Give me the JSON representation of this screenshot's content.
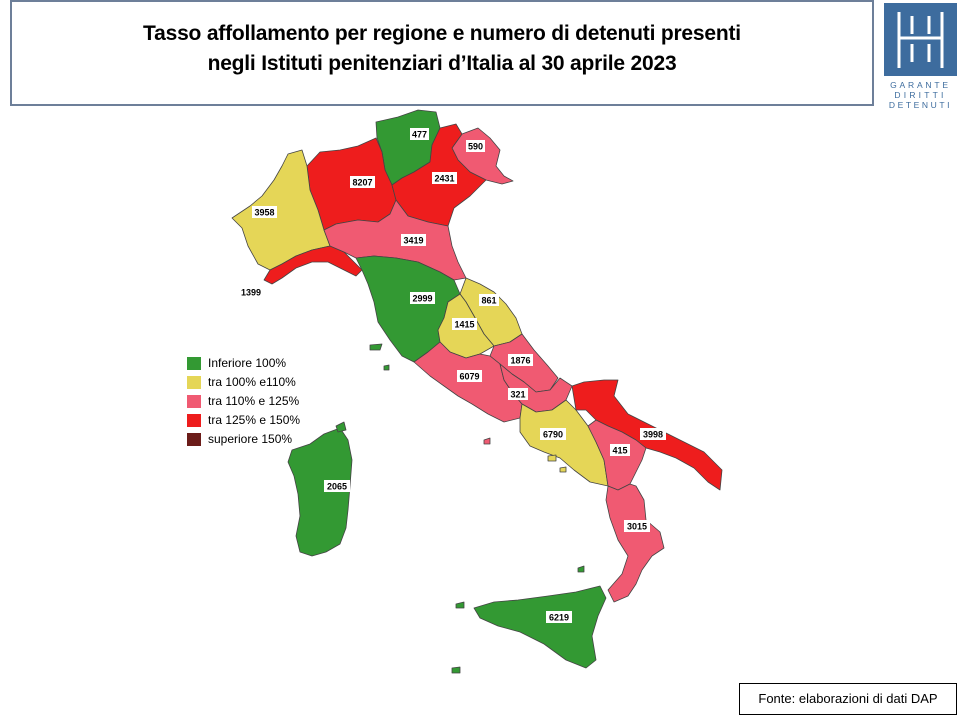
{
  "title": {
    "line1": "Tasso affollamento per regione e numero di detenuti presenti",
    "line2": "negli Istituti penitenziari d’Italia al 30 aprile 2023"
  },
  "logo": {
    "line1": "GARANTE",
    "line2": "DIRITTI",
    "line3": "DETENUTI",
    "color": "#3d6c9e"
  },
  "legend": [
    {
      "label": "Inferiore 100%",
      "color": "#339933"
    },
    {
      "label": "tra 100% e110%",
      "color": "#e5d657"
    },
    {
      "label": "tra 110% e 125%",
      "color": "#f05a72"
    },
    {
      "label": "tra 125% e 150%",
      "color": "#ee1d1d"
    },
    {
      "label": "superiore 150%",
      "color": "#6b1c19"
    }
  ],
  "regions": {
    "valle_aosta": "477",
    "trentino": "590",
    "lombardia": "8207",
    "veneto": "2431",
    "piemonte": "3958",
    "liguria": "1399",
    "emilia": "3419",
    "toscana": "2999",
    "marche": "861",
    "umbria": "1415",
    "abruzzo": "1876",
    "lazio": "6079",
    "molise": "321",
    "campania": "6790",
    "puglia": "3998",
    "basilicata": "415",
    "calabria": "3015",
    "sardegna": "2065",
    "sicilia": "6219"
  },
  "source": "Fonte: elaborazioni di dati DAP"
}
